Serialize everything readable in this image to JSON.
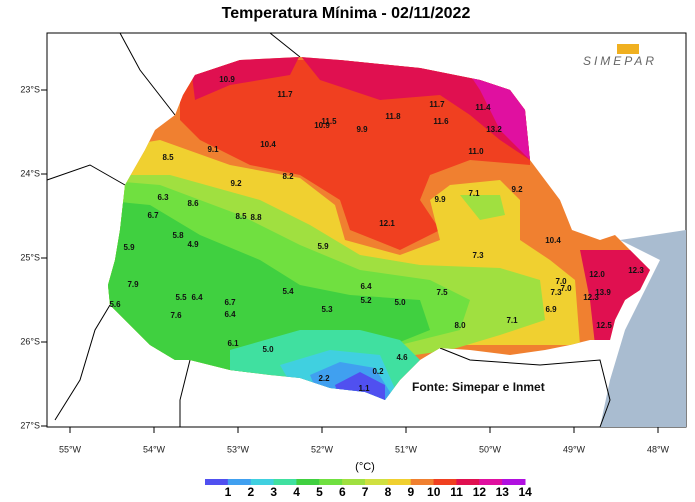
{
  "title": "Temperatura Mínima - 02/11/2022",
  "logo": "SIMEPAR",
  "source": "Fonte:  Simepar e Inmet",
  "lat_labels": [
    "23°S",
    "24°S",
    "25°S",
    "26°S",
    "27°S"
  ],
  "lon_labels": [
    "55°W",
    "54°W",
    "53°W",
    "52°W",
    "51°W",
    "50°W",
    "49°W",
    "48°W"
  ],
  "stations": [
    "10.9",
    "11.7",
    "11.5",
    "10.9",
    "9.9",
    "11.8",
    "11.7",
    "11.4",
    "11.6",
    "13.2",
    "11.0",
    "9.1",
    "10.4",
    "8.5",
    "8.2",
    "9.2",
    "6.3",
    "8.6",
    "6.7",
    "8.5",
    "8.8",
    "12.1",
    "9.9",
    "7.1",
    "9.2",
    "5.8",
    "4.9",
    "5.9",
    "5.9",
    "10.4",
    "7.3",
    "7.9",
    "5.5",
    "6.4",
    "5.6",
    "5.4",
    "6.4",
    "5.2",
    "5.0",
    "7.5",
    "6.7",
    "6.4",
    "5.3",
    "7.6",
    "12.0",
    "7.0",
    "7.0",
    "7.3",
    "12.3",
    "12.3",
    "13.9",
    "6.9",
    "7.1",
    "8.0",
    "12.5",
    "6.1",
    "5.0",
    "4.6",
    "2.2",
    "0.2",
    "1.1"
  ],
  "legend": {
    "unit": "(°C)",
    "labels": [
      1,
      2,
      3,
      4,
      5,
      6,
      7,
      8,
      9,
      10,
      11,
      12,
      13,
      14
    ],
    "colors": [
      "#5050f0",
      "#40a0f0",
      "#40d0e0",
      "#40e0a0",
      "#40d040",
      "#70e040",
      "#a0e040",
      "#d0e040",
      "#f0d030",
      "#f08030",
      "#f04020",
      "#e01050",
      "#e010a0",
      "#b010e0"
    ]
  }
}
